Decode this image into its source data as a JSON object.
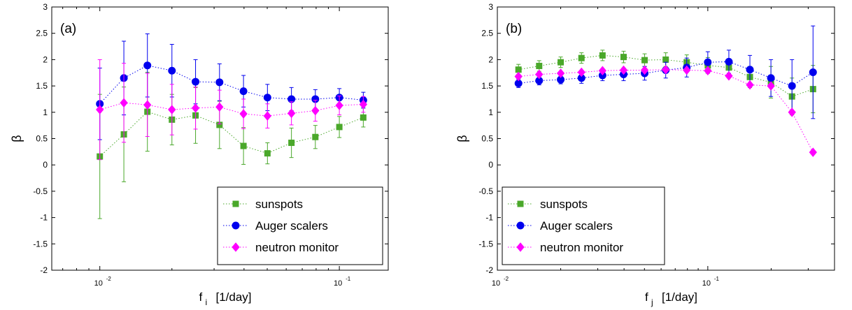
{
  "chart_data": [
    {
      "type": "scatter",
      "panel_label": "(a)",
      "xlabel_main": "f",
      "xlabel_sub": "i",
      "xlabel_unit": "[1/day]",
      "ylabel": "β",
      "xscale": "log",
      "xlim": [
        0.0063,
        0.16
      ],
      "ylim": [
        -2,
        3
      ],
      "yticks": [
        -2,
        -1.5,
        -1,
        -0.5,
        0,
        0.5,
        1,
        1.5,
        2,
        2.5,
        3
      ],
      "ytick_labels": [
        "-2",
        "-1.5",
        "-1",
        "-0.5",
        "0",
        "0.5",
        "1",
        "1.5",
        "2",
        "2.5",
        "3"
      ],
      "xticks": [
        {
          "value": 0.01,
          "base": "10",
          "exp": "-2"
        },
        {
          "value": 0.1,
          "base": "10",
          "exp": "-1"
        }
      ],
      "grid": false,
      "legend_position": "bottom-right",
      "series": [
        {
          "name": "sunspots",
          "marker": "square",
          "color": "#4aa82a",
          "x": [
            0.01,
            0.0126,
            0.0158,
            0.02,
            0.0251,
            0.0316,
            0.0398,
            0.0501,
            0.0631,
            0.0794,
            0.1,
            0.1259
          ],
          "y": [
            0.16,
            0.58,
            1.01,
            0.86,
            0.94,
            0.76,
            0.36,
            0.22,
            0.42,
            0.53,
            0.72,
            0.9
          ],
          "err": [
            1.18,
            0.9,
            0.75,
            0.48,
            0.53,
            0.45,
            0.35,
            0.2,
            0.28,
            0.22,
            0.2,
            0.18
          ]
        },
        {
          "name": "Auger scalers",
          "marker": "circle",
          "color": "#0000ee",
          "x": [
            0.01,
            0.0126,
            0.0158,
            0.02,
            0.0251,
            0.0316,
            0.0398,
            0.0501,
            0.0631,
            0.0794,
            0.1,
            0.1259
          ],
          "y": [
            1.16,
            1.65,
            1.89,
            1.79,
            1.58,
            1.57,
            1.4,
            1.28,
            1.25,
            1.25,
            1.28,
            1.23
          ],
          "err": [
            0.68,
            0.7,
            0.6,
            0.5,
            0.42,
            0.35,
            0.3,
            0.25,
            0.22,
            0.18,
            0.17,
            0.15
          ]
        },
        {
          "name": "neutron monitor",
          "marker": "diamond",
          "color": "#ff00ff",
          "x": [
            0.01,
            0.0126,
            0.0158,
            0.02,
            0.0251,
            0.0316,
            0.0398,
            0.0501,
            0.0631,
            0.0794,
            0.1,
            0.1259
          ],
          "y": [
            1.05,
            1.18,
            1.14,
            1.05,
            1.08,
            1.1,
            0.97,
            0.93,
            0.98,
            1.03,
            1.13,
            1.15
          ],
          "err": [
            0.95,
            0.75,
            0.6,
            0.48,
            0.4,
            0.32,
            0.28,
            0.23,
            0.22,
            0.2,
            0.18,
            0.15
          ]
        }
      ]
    },
    {
      "type": "scatter",
      "panel_label": "(b)",
      "xlabel_main": "f",
      "xlabel_sub": "j",
      "xlabel_unit": "[1/day]",
      "ylabel": "β",
      "xscale": "log",
      "xlim": [
        0.01,
        0.4
      ],
      "ylim": [
        -2,
        3
      ],
      "yticks": [
        -2,
        -1.5,
        -1,
        -0.5,
        0,
        0.5,
        1,
        1.5,
        2,
        2.5,
        3
      ],
      "ytick_labels": [
        "-2",
        "-1.5",
        "-1",
        "-0.5",
        "0",
        "0.5",
        "1",
        "1.5",
        "2",
        "2.5",
        "3"
      ],
      "xticks": [
        {
          "value": 0.01,
          "base": "10",
          "exp": "-2"
        },
        {
          "value": 0.1,
          "base": "10",
          "exp": "-1"
        }
      ],
      "grid": false,
      "legend_position": "bottom-left",
      "series": [
        {
          "name": "sunspots",
          "marker": "square",
          "color": "#4aa82a",
          "x": [
            0.0126,
            0.0158,
            0.02,
            0.0251,
            0.0316,
            0.0398,
            0.0501,
            0.0631,
            0.0794,
            0.1,
            0.1259,
            0.1585,
            0.1995,
            0.2512,
            0.3162
          ],
          "y": [
            1.81,
            1.88,
            1.95,
            2.03,
            2.08,
            2.05,
            1.99,
            2.0,
            1.95,
            1.89,
            1.85,
            1.67,
            1.57,
            1.3,
            1.44
          ],
          "err": [
            0.1,
            0.1,
            0.1,
            0.1,
            0.1,
            0.11,
            0.12,
            0.13,
            0.14,
            0.15,
            0.16,
            0.2,
            0.3,
            0.35,
            0.45
          ]
        },
        {
          "name": "Auger scalers",
          "marker": "circle",
          "color": "#0000ee",
          "x": [
            0.0126,
            0.0158,
            0.02,
            0.0251,
            0.0316,
            0.0398,
            0.0501,
            0.0631,
            0.0794,
            0.1,
            0.1259,
            0.1585,
            0.1995,
            0.2512,
            0.3162
          ],
          "y": [
            1.55,
            1.6,
            1.62,
            1.65,
            1.7,
            1.72,
            1.74,
            1.8,
            1.85,
            1.95,
            1.96,
            1.81,
            1.65,
            1.5,
            1.76
          ],
          "err": [
            0.08,
            0.08,
            0.08,
            0.1,
            0.1,
            0.12,
            0.13,
            0.15,
            0.18,
            0.2,
            0.22,
            0.27,
            0.35,
            0.5,
            0.88
          ]
        },
        {
          "name": "neutron monitor",
          "marker": "diamond",
          "color": "#ff00ff",
          "x": [
            0.0126,
            0.0158,
            0.02,
            0.0251,
            0.0316,
            0.0398,
            0.0501,
            0.0631,
            0.0794,
            0.1,
            0.1259,
            0.1585,
            0.1995,
            0.2512,
            0.3162
          ],
          "y": [
            1.68,
            1.72,
            1.74,
            1.76,
            1.79,
            1.8,
            1.8,
            1.81,
            1.8,
            1.79,
            1.69,
            1.52,
            1.5,
            1.0,
            0.24
          ]
        }
      ]
    }
  ]
}
